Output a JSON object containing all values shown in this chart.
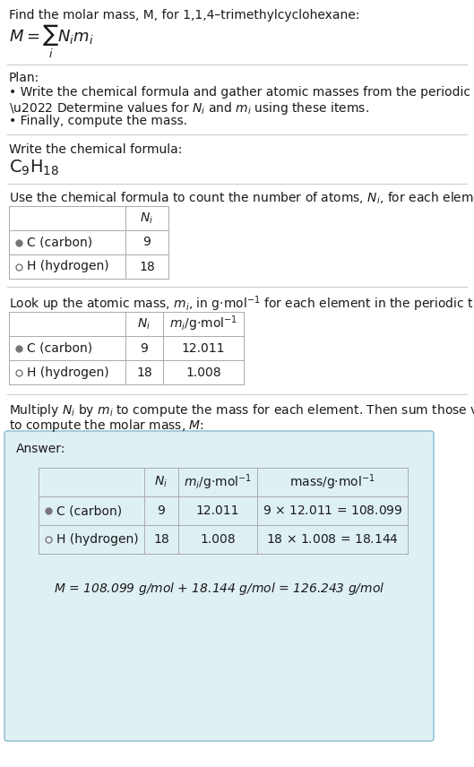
{
  "bg_color": "#ffffff",
  "text_color": "#1a1a1a",
  "answer_bg": "#dff0f5",
  "answer_border": "#88bbcc",
  "hline_color": "#cccccc",
  "table_line_color": "#aaaaaa",
  "font_size": 10.0,
  "title": "Find the molar mass, M, for 1,1,4–trimethylcyclohexane:",
  "plan_header": "Plan:",
  "bullet1": "• Write the chemical formula and gather atomic masses from the periodic table.",
  "bullet2_pre": "• Determine values for ",
  "bullet2_post": " and ",
  "bullet2_end": " using these items.",
  "bullet3": "• Finally, compute the mass.",
  "formula_label": "Write the chemical formula:",
  "table1_label": "Use the chemical formula to count the number of atoms, ",
  "table1_label2": ", for each element:",
  "table2_label": "Look up the atomic mass, ",
  "table2_label2": ", in g·mol",
  "table2_label3": " for each element in the periodic table:",
  "table3_label1": "Multiply ",
  "table3_label2": " by ",
  "table3_label3": " to compute the mass for each element. Then sum those values",
  "table3_label4": "to compute the molar mass, ",
  "table3_label5": ":",
  "answer_label": "Answer:",
  "final_eq": "M = 108.099 g/mol + 18.144 g/mol = 126.243 g/mol"
}
